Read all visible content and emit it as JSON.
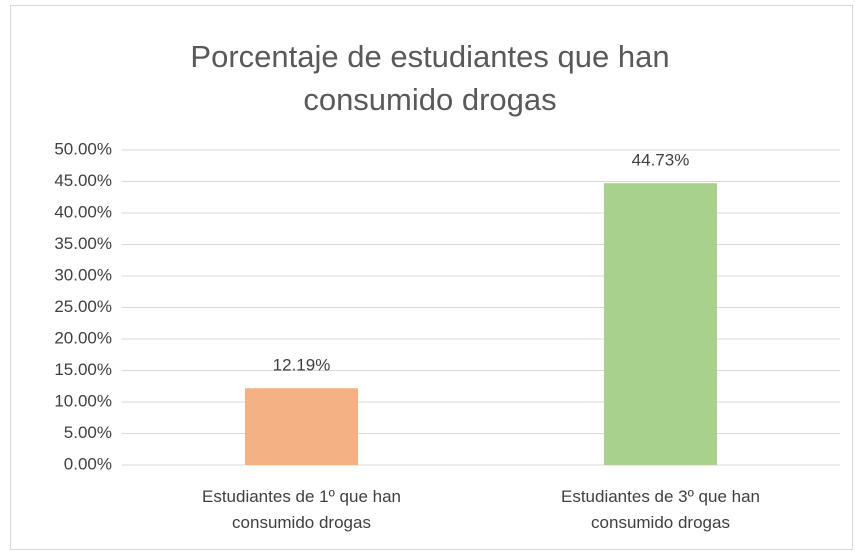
{
  "chart_data": {
    "type": "bar",
    "title": "Porcentaje de estudiantes que han consumido drogas",
    "categories": [
      "Estudiantes de 1º que han consumido drogas",
      "Estudiantes de 3º que han consumido drogas"
    ],
    "values": [
      12.19,
      44.73
    ],
    "value_labels": [
      "12.19%",
      "44.73%"
    ],
    "colors": [
      "#f4b183",
      "#a9d18e"
    ],
    "ylim": [
      0,
      50
    ],
    "yticks": [
      {
        "value": 0,
        "label": "0.00%"
      },
      {
        "value": 5,
        "label": "5.00%"
      },
      {
        "value": 10,
        "label": "10.00%"
      },
      {
        "value": 15,
        "label": "15.00%"
      },
      {
        "value": 20,
        "label": "20.00%"
      },
      {
        "value": 25,
        "label": "25.00%"
      },
      {
        "value": 30,
        "label": "30.00%"
      },
      {
        "value": 35,
        "label": "35.00%"
      },
      {
        "value": 40,
        "label": "40.00%"
      },
      {
        "value": 45,
        "label": "45.00%"
      },
      {
        "value": 50,
        "label": "50.00%"
      }
    ],
    "grid": true
  }
}
